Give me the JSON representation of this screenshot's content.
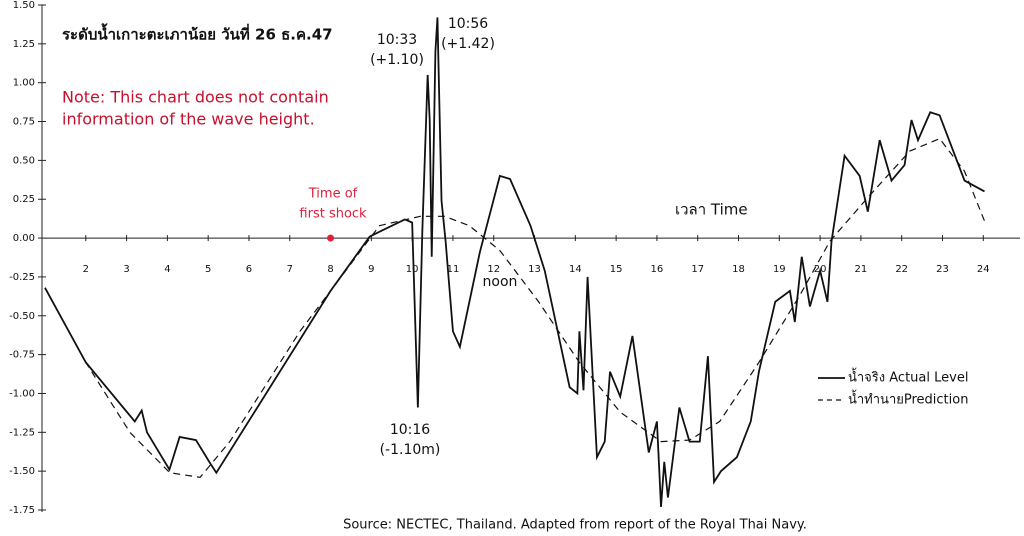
{
  "chart_data": {
    "type": "line",
    "title": "ระดับน้ำเกาะตะเภาน้อย วันที่ 26 ธ.ค.47",
    "note": [
      "Note: This chart does not contain",
      "information of the wave height."
    ],
    "xlabel": "เวลา Time",
    "source": "Source: NECTEC, Thailand. Adapted from report of the Royal Thai Navy.",
    "xlim": [
      1,
      24.9
    ],
    "xticks": [
      2,
      3,
      4,
      5,
      6,
      7,
      8,
      9,
      10,
      11,
      12,
      13,
      14,
      15,
      16,
      17,
      18,
      19,
      20,
      21,
      22,
      23,
      24
    ],
    "ylim": [
      -1.75,
      1.5
    ],
    "yticks": [
      {
        "value": 1.5,
        "label": "1.50"
      },
      {
        "value": 1.25,
        "label": "1.25"
      },
      {
        "value": 1,
        "label": "1.00"
      },
      {
        "value": 0.75,
        "label": "0.75"
      },
      {
        "value": 0.5,
        "label": "0.50"
      },
      {
        "value": 0.25,
        "label": "0.25"
      },
      {
        "value": 0,
        "label": "0.00"
      },
      {
        "value": -0.25,
        "label": "-0.25"
      },
      {
        "value": -0.5,
        "label": "-0.50"
      },
      {
        "value": -0.75,
        "label": "-0.75"
      },
      {
        "value": -1,
        "label": "-1.00"
      },
      {
        "value": -1.25,
        "label": "-1.25"
      },
      {
        "value": -1.5,
        "label": "-1.50"
      },
      {
        "value": -1.75,
        "label": "-1.75"
      }
    ],
    "grid": false,
    "legend": "right",
    "series": [
      {
        "name": "น้ำจริง Actual Level",
        "color": "#111111",
        "dash": false,
        "x": [
          1.0,
          2.0,
          3.2,
          3.37,
          3.5,
          4.05,
          4.3,
          4.7,
          5.05,
          5.2,
          8.0,
          8.96,
          9.82,
          10.0,
          10.14,
          10.25,
          10.38,
          10.43,
          10.48,
          10.57,
          10.62,
          10.72,
          10.82,
          11.0,
          11.17,
          11.66,
          12.15,
          12.4,
          12.9,
          13.25,
          13.86,
          14.05,
          14.1,
          14.2,
          14.3,
          14.53,
          14.72,
          14.85,
          15.1,
          15.4,
          15.8,
          16.0,
          16.1,
          16.18,
          16.27,
          16.55,
          16.8,
          17.05,
          17.25,
          17.4,
          17.57,
          17.96,
          18.3,
          18.5,
          18.9,
          19.26,
          19.38,
          19.55,
          19.75,
          20.0,
          20.18,
          20.28,
          20.6,
          20.97,
          21.17,
          21.46,
          21.75,
          22.07,
          22.24,
          22.4,
          22.7,
          22.93,
          23.54,
          24.03
        ],
        "values": [
          -0.32,
          -0.8,
          -1.18,
          -1.11,
          -1.25,
          -1.49,
          -1.28,
          -1.3,
          -1.45,
          -1.51,
          -0.34,
          0.01,
          0.12,
          0.1,
          -1.09,
          0.05,
          1.05,
          0.76,
          -0.12,
          1.2,
          1.42,
          0.24,
          -0.02,
          -0.6,
          -0.7,
          -0.09,
          0.4,
          0.38,
          0.08,
          -0.21,
          -0.96,
          -1.0,
          -0.6,
          -0.98,
          -0.25,
          -1.41,
          -1.31,
          -0.86,
          -1.02,
          -0.63,
          -1.38,
          -1.18,
          -1.73,
          -1.44,
          -1.67,
          -1.09,
          -1.31,
          -1.31,
          -0.76,
          -1.57,
          -1.5,
          -1.41,
          -1.18,
          -0.86,
          -0.41,
          -0.34,
          -0.54,
          -0.12,
          -0.44,
          -0.21,
          -0.41,
          -0.02,
          0.53,
          0.4,
          0.17,
          0.63,
          0.37,
          0.47,
          0.76,
          0.63,
          0.81,
          0.79,
          0.37,
          0.3
        ]
      },
      {
        "name": "น้ำทำนายPrediction",
        "color": "#111111",
        "dash": true,
        "x": [
          1.0,
          2.0,
          3.08,
          4.06,
          4.8,
          5.53,
          7.25,
          8.0,
          9.2,
          10.2,
          10.8,
          11.4,
          12.15,
          13.1,
          14.1,
          15.1,
          16.1,
          16.8,
          17.54,
          18.5,
          19.5,
          20.24,
          21.2,
          22.2,
          22.93,
          23.54,
          24.03
        ],
        "values": [
          -0.32,
          -0.8,
          -1.25,
          -1.51,
          -1.54,
          -1.31,
          -0.6,
          -0.34,
          0.08,
          0.14,
          0.14,
          0.08,
          -0.08,
          -0.41,
          -0.8,
          -1.12,
          -1.31,
          -1.3,
          -1.18,
          -0.8,
          -0.37,
          -0.02,
          0.27,
          0.56,
          0.64,
          0.43,
          0.11
        ]
      }
    ],
    "annotations": [
      {
        "lines": [
          "10:33",
          "(+1.10)"
        ]
      },
      {
        "lines": [
          "10:56",
          "(+1.42)"
        ]
      },
      {
        "lines": [
          "10:16",
          "(-1.10m)"
        ]
      },
      {
        "lines": [
          "noon"
        ]
      },
      {
        "lines": [
          "Time of",
          "first shock"
        ],
        "x": 8,
        "y": 0,
        "color": "#e0203a"
      }
    ]
  }
}
